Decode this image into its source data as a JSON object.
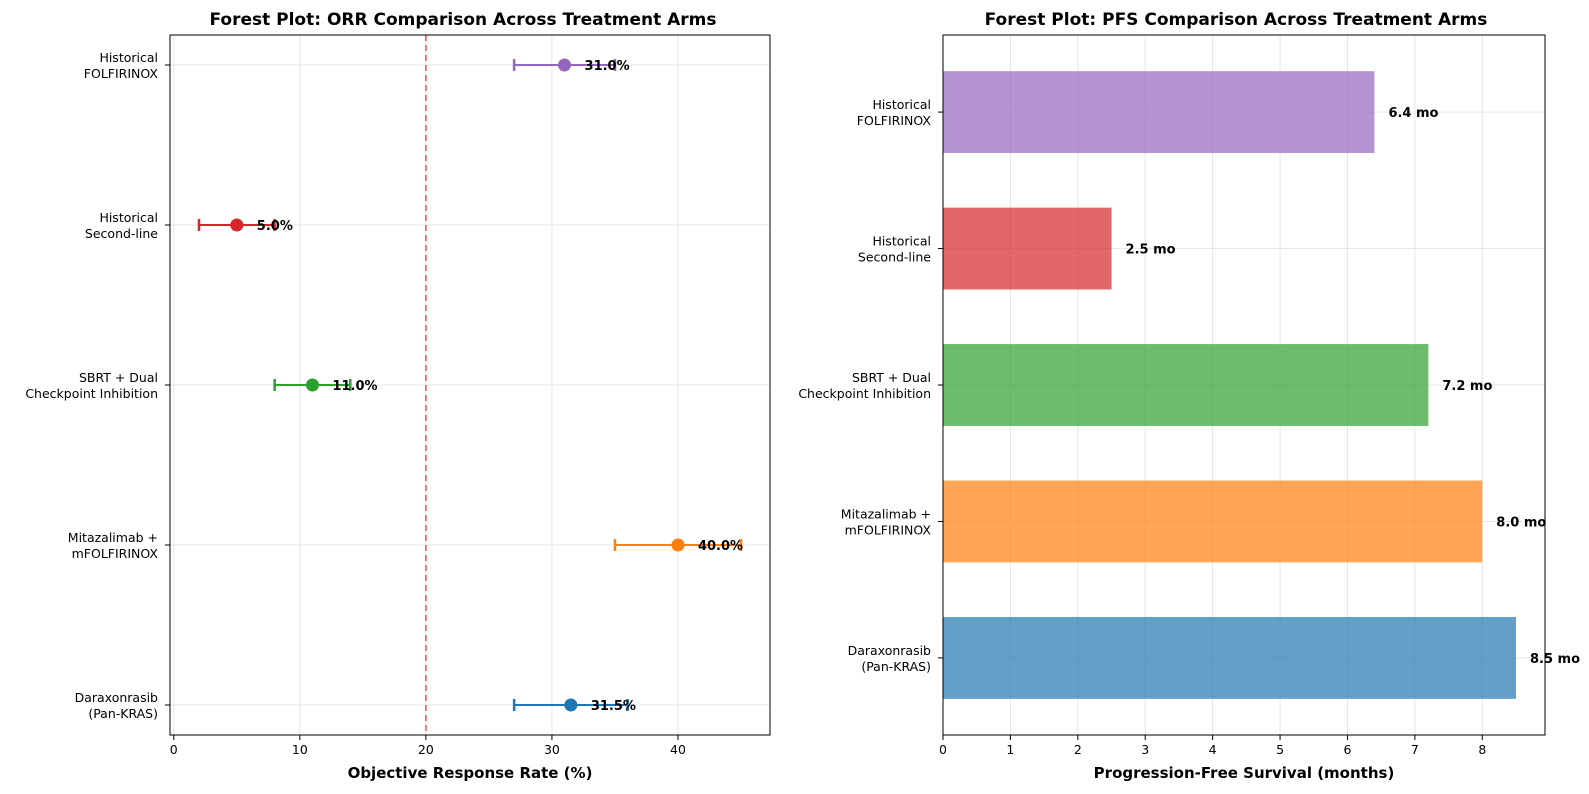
{
  "chart_data": [
    {
      "type": "scatter",
      "subtype": "forest-plot",
      "title": "Forest Plot: ORR Comparison Across Treatment Arms",
      "xlabel": "Objective Response Rate (%)",
      "ylabel": "",
      "xlim": [
        -0.3,
        47.3
      ],
      "xticks": [
        0,
        10,
        20,
        30,
        40
      ],
      "grid": true,
      "reference_line": {
        "x": 20,
        "style": "dashed",
        "color": "#ff5555"
      },
      "categories": [
        [
          "Daraxonrasib",
          "(Pan-KRAS)"
        ],
        [
          "Mitazalimab +",
          "mFOLFIRINOX"
        ],
        [
          "SBRT + Dual",
          "Checkpoint Inhibition"
        ],
        [
          "Historical",
          "Second-line"
        ],
        [
          "Historical",
          "FOLFIRINOX"
        ]
      ],
      "values": [
        31.5,
        40.0,
        11.0,
        5.0,
        31.0
      ],
      "ci_low": [
        27,
        35,
        8,
        2,
        27
      ],
      "ci_high": [
        36,
        45,
        14,
        8,
        35
      ],
      "data_labels": [
        "31.5%",
        "40.0%",
        "11.0%",
        "5.0%",
        "31.0%"
      ],
      "colors": [
        "#1f77b4",
        "#ff7f0e",
        "#2ca02c",
        "#d62728",
        "#9467bd"
      ]
    },
    {
      "type": "bar",
      "orientation": "horizontal",
      "title": "Forest Plot: PFS Comparison Across Treatment Arms",
      "xlabel": "Progression-Free Survival (months)",
      "ylabel": "",
      "xlim": [
        0,
        8.93
      ],
      "xticks": [
        0,
        1,
        2,
        3,
        4,
        5,
        6,
        7,
        8
      ],
      "grid": true,
      "categories": [
        [
          "Daraxonrasib",
          "(Pan-KRAS)"
        ],
        [
          "Mitazalimab +",
          "mFOLFIRINOX"
        ],
        [
          "SBRT + Dual",
          "Checkpoint Inhibition"
        ],
        [
          "Historical",
          "Second-line"
        ],
        [
          "Historical",
          "FOLFIRINOX"
        ]
      ],
      "values": [
        8.5,
        8.0,
        7.2,
        2.5,
        6.4
      ],
      "data_labels": [
        "8.5 mo",
        "8.0 mo",
        "7.2 mo",
        "2.5 mo",
        "6.4 mo"
      ],
      "colors": [
        "#1f77b4",
        "#ff7f0e",
        "#2ca02c",
        "#d62728",
        "#9467bd"
      ]
    }
  ]
}
